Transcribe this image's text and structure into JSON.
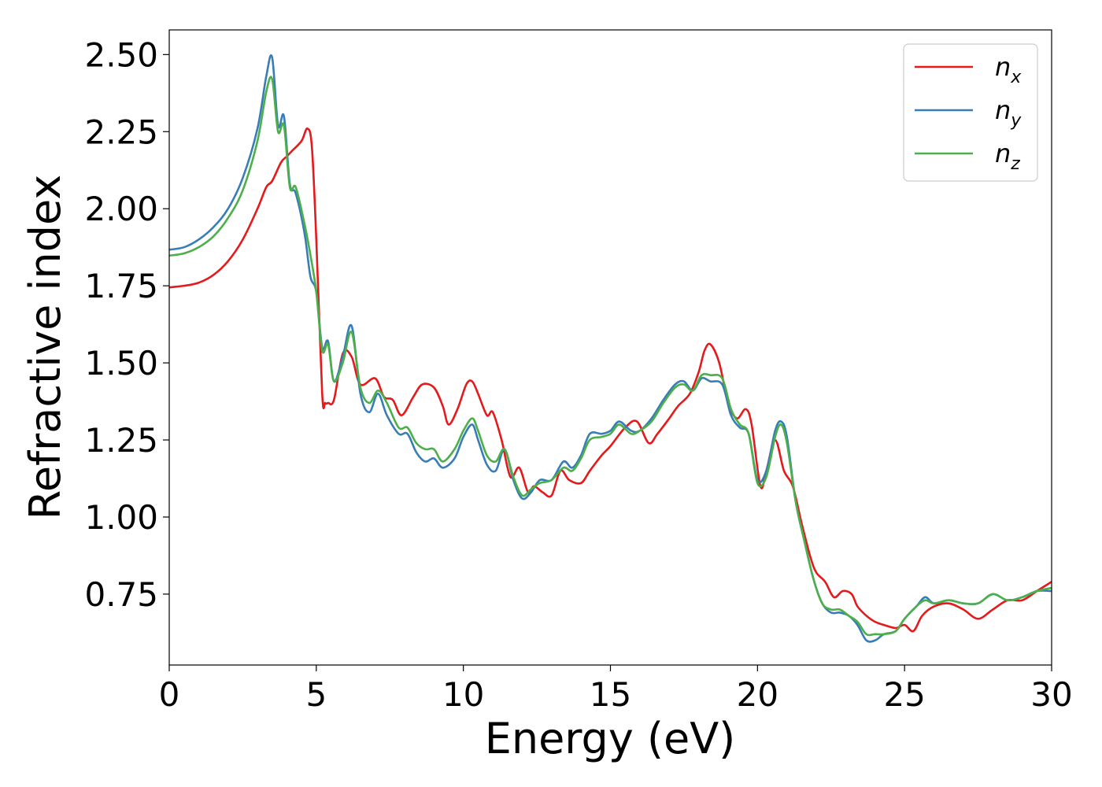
{
  "chart_data": {
    "type": "line",
    "title": "",
    "xlabel": "Energy (eV)",
    "ylabel": "Refractive index",
    "xlim": [
      0,
      30
    ],
    "ylim": [
      0.52,
      2.58
    ],
    "xticks": [
      0,
      5,
      10,
      15,
      20,
      25,
      30
    ],
    "xtick_labels": [
      "0",
      "5",
      "10",
      "15",
      "20",
      "25",
      "30"
    ],
    "yticks": [
      0.75,
      1.0,
      1.25,
      1.5,
      1.75,
      2.0,
      2.25,
      2.5
    ],
    "ytick_labels": [
      "0.75",
      "1.00",
      "1.25",
      "1.50",
      "1.75",
      "2.00",
      "2.25",
      "2.50"
    ],
    "grid": false,
    "legend": {
      "position": "top-right",
      "entries": [
        {
          "base": "n",
          "sub": "x"
        },
        {
          "base": "n",
          "sub": "y"
        },
        {
          "base": "n",
          "sub": "z"
        }
      ]
    },
    "series": [
      {
        "name": "nx",
        "color": "#e41a1c",
        "x": [
          0,
          0.5,
          1,
          1.5,
          2,
          2.5,
          3,
          3.3,
          3.5,
          3.8,
          4,
          4.2,
          4.5,
          4.7,
          4.85,
          5.0,
          5.2,
          5.3,
          5.4,
          5.6,
          5.9,
          6.2,
          6.5,
          7.0,
          7.3,
          7.6,
          7.9,
          8.3,
          8.6,
          9.0,
          9.3,
          9.5,
          9.8,
          10.1,
          10.3,
          10.5,
          10.8,
          11.0,
          11.3,
          11.6,
          11.9,
          12.2,
          12.4,
          12.7,
          13.0,
          13.3,
          13.6,
          14.0,
          14.3,
          14.7,
          15.0,
          15.5,
          15.9,
          16.3,
          16.6,
          17.0,
          17.3,
          17.7,
          18.0,
          18.2,
          18.4,
          18.7,
          19.0,
          19.3,
          19.6,
          19.8,
          20.1,
          20.3,
          20.6,
          20.9,
          21.2,
          21.5,
          21.8,
          22.0,
          22.3,
          22.6,
          22.9,
          23.2,
          23.4,
          23.7,
          24.0,
          24.3,
          24.7,
          25.0,
          25.3,
          25.6,
          26.0,
          26.5,
          27.0,
          27.5,
          28.0,
          28.5,
          29.0,
          29.5,
          30
        ],
        "values": [
          1.745,
          1.75,
          1.76,
          1.785,
          1.83,
          1.9,
          2.0,
          2.07,
          2.09,
          2.15,
          2.17,
          2.19,
          2.22,
          2.26,
          2.2,
          1.9,
          1.4,
          1.37,
          1.37,
          1.38,
          1.53,
          1.52,
          1.43,
          1.45,
          1.39,
          1.38,
          1.33,
          1.39,
          1.43,
          1.42,
          1.36,
          1.3,
          1.35,
          1.43,
          1.44,
          1.4,
          1.33,
          1.34,
          1.25,
          1.13,
          1.16,
          1.08,
          1.1,
          1.08,
          1.07,
          1.15,
          1.12,
          1.11,
          1.15,
          1.2,
          1.23,
          1.29,
          1.31,
          1.24,
          1.27,
          1.32,
          1.36,
          1.4,
          1.47,
          1.54,
          1.56,
          1.5,
          1.37,
          1.32,
          1.35,
          1.3,
          1.1,
          1.15,
          1.25,
          1.15,
          1.1,
          0.98,
          0.87,
          0.82,
          0.79,
          0.74,
          0.76,
          0.75,
          0.71,
          0.68,
          0.66,
          0.65,
          0.64,
          0.65,
          0.63,
          0.68,
          0.71,
          0.72,
          0.7,
          0.67,
          0.7,
          0.73,
          0.73,
          0.76,
          0.79
        ]
      },
      {
        "name": "ny",
        "color": "#377eb8",
        "x": [
          0,
          0.5,
          1,
          1.5,
          2,
          2.5,
          3,
          3.3,
          3.5,
          3.7,
          3.9,
          4.1,
          4.3,
          4.6,
          4.8,
          5.0,
          5.2,
          5.4,
          5.6,
          5.9,
          6.2,
          6.5,
          6.8,
          7.1,
          7.4,
          7.8,
          8.1,
          8.4,
          8.7,
          9.0,
          9.3,
          9.7,
          10.0,
          10.3,
          10.5,
          10.8,
          11.1,
          11.4,
          11.7,
          12.0,
          12.3,
          12.6,
          13.0,
          13.4,
          13.7,
          14.0,
          14.3,
          14.7,
          15.0,
          15.3,
          15.7,
          16.0,
          16.4,
          16.8,
          17.2,
          17.5,
          17.8,
          18.1,
          18.4,
          18.8,
          19.1,
          19.4,
          19.7,
          20.0,
          20.3,
          20.6,
          20.8,
          21.0,
          21.3,
          21.6,
          21.9,
          22.2,
          22.5,
          22.8,
          23.1,
          23.4,
          23.7,
          24.0,
          24.3,
          24.7,
          25.0,
          25.4,
          25.7,
          26.0,
          26.5,
          27.0,
          27.5,
          28.0,
          28.5,
          29.0,
          29.5,
          30
        ],
        "values": [
          1.867,
          1.875,
          1.9,
          1.94,
          2.0,
          2.1,
          2.26,
          2.43,
          2.49,
          2.27,
          2.3,
          2.08,
          2.05,
          1.92,
          1.78,
          1.73,
          1.55,
          1.57,
          1.44,
          1.52,
          1.62,
          1.4,
          1.34,
          1.4,
          1.33,
          1.27,
          1.27,
          1.21,
          1.18,
          1.19,
          1.16,
          1.19,
          1.26,
          1.3,
          1.25,
          1.17,
          1.15,
          1.22,
          1.12,
          1.06,
          1.08,
          1.12,
          1.12,
          1.18,
          1.16,
          1.2,
          1.27,
          1.27,
          1.28,
          1.31,
          1.28,
          1.28,
          1.32,
          1.38,
          1.43,
          1.44,
          1.41,
          1.45,
          1.44,
          1.43,
          1.33,
          1.29,
          1.27,
          1.12,
          1.15,
          1.28,
          1.31,
          1.26,
          1.05,
          0.92,
          0.8,
          0.72,
          0.69,
          0.69,
          0.68,
          0.65,
          0.6,
          0.6,
          0.62,
          0.63,
          0.67,
          0.71,
          0.74,
          0.72,
          0.73,
          0.72,
          0.72,
          0.75,
          0.73,
          0.74,
          0.76,
          0.76
        ]
      },
      {
        "name": "nz",
        "color": "#4daf4a",
        "x": [
          0,
          0.5,
          1,
          1.5,
          2,
          2.5,
          3,
          3.3,
          3.5,
          3.7,
          3.9,
          4.1,
          4.3,
          4.6,
          4.8,
          5.0,
          5.2,
          5.4,
          5.6,
          5.9,
          6.2,
          6.5,
          6.8,
          7.1,
          7.4,
          7.8,
          8.1,
          8.4,
          8.7,
          9.0,
          9.3,
          9.7,
          10.0,
          10.3,
          10.5,
          10.8,
          11.1,
          11.4,
          11.7,
          12.0,
          12.3,
          12.6,
          13.0,
          13.4,
          13.7,
          14.0,
          14.3,
          14.7,
          15.0,
          15.3,
          15.7,
          16.0,
          16.4,
          16.8,
          17.2,
          17.5,
          17.8,
          18.1,
          18.4,
          18.8,
          19.1,
          19.4,
          19.7,
          20.0,
          20.3,
          20.6,
          20.8,
          21.0,
          21.3,
          21.6,
          21.9,
          22.2,
          22.5,
          22.8,
          23.1,
          23.4,
          23.7,
          24.0,
          24.3,
          24.7,
          25.0,
          25.4,
          25.7,
          26.0,
          26.5,
          27.0,
          27.5,
          28.0,
          28.5,
          29.0,
          29.5,
          30
        ],
        "values": [
          1.848,
          1.855,
          1.875,
          1.91,
          1.97,
          2.06,
          2.22,
          2.38,
          2.42,
          2.25,
          2.27,
          2.07,
          2.07,
          1.95,
          1.85,
          1.73,
          1.54,
          1.56,
          1.44,
          1.5,
          1.6,
          1.42,
          1.37,
          1.41,
          1.37,
          1.29,
          1.29,
          1.24,
          1.22,
          1.22,
          1.18,
          1.22,
          1.28,
          1.32,
          1.28,
          1.2,
          1.18,
          1.22,
          1.13,
          1.07,
          1.09,
          1.11,
          1.12,
          1.16,
          1.15,
          1.19,
          1.25,
          1.26,
          1.27,
          1.3,
          1.27,
          1.28,
          1.31,
          1.37,
          1.42,
          1.43,
          1.41,
          1.46,
          1.46,
          1.45,
          1.35,
          1.3,
          1.27,
          1.11,
          1.13,
          1.26,
          1.3,
          1.24,
          1.05,
          0.92,
          0.8,
          0.72,
          0.7,
          0.7,
          0.68,
          0.66,
          0.62,
          0.62,
          0.62,
          0.63,
          0.67,
          0.71,
          0.73,
          0.72,
          0.73,
          0.72,
          0.72,
          0.75,
          0.73,
          0.74,
          0.76,
          0.77
        ]
      }
    ]
  }
}
